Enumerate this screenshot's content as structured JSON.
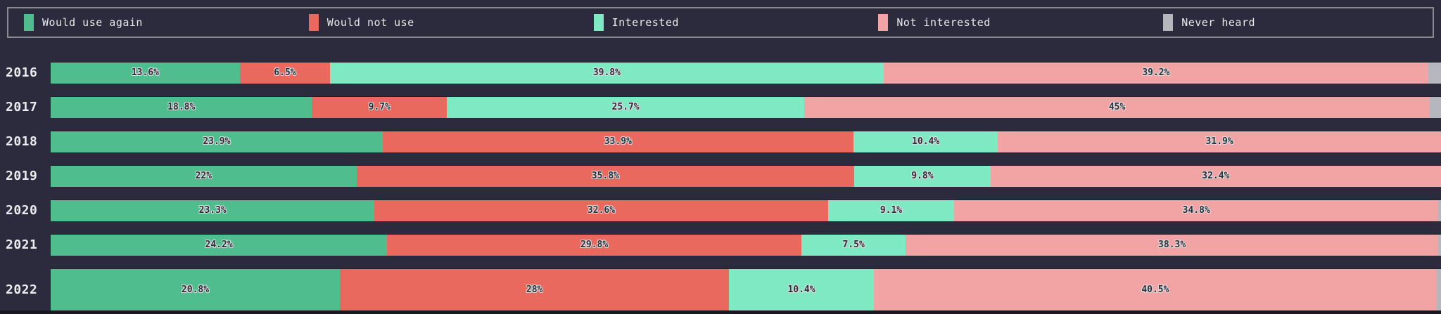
{
  "colors": {
    "background": "#2b2b3d",
    "legend_border": "#8a8a94",
    "would_use_again": "#4fbd8d",
    "would_not_use": "#e9695f",
    "interested": "#7ee9c3",
    "not_interested": "#f2a3a3",
    "never_heard": "#b6b6be"
  },
  "legend": {
    "items": [
      {
        "label": "Would use again",
        "color": "#4fbd8d"
      },
      {
        "label": "Would not use",
        "color": "#e9695f"
      },
      {
        "label": "Interested",
        "color": "#7ee9c3"
      },
      {
        "label": "Not interested",
        "color": "#f2a3a3"
      },
      {
        "label": "Never heard",
        "color": "#b6b6be"
      }
    ]
  },
  "chart_data": {
    "type": "bar",
    "orientation": "horizontal-stacked",
    "title": "",
    "xlabel": "",
    "ylabel": "",
    "xlim": [
      0,
      100
    ],
    "value_suffix": "%",
    "legend_position": "top",
    "categories": [
      "2016",
      "2017",
      "2018",
      "2019",
      "2020",
      "2021",
      "2022"
    ],
    "series": [
      {
        "name": "Would use again",
        "color": "#4fbd8d",
        "values": [
          13.6,
          18.8,
          23.9,
          22,
          23.3,
          24.2,
          20.8
        ]
      },
      {
        "name": "Would not use",
        "color": "#e9695f",
        "values": [
          6.5,
          9.7,
          33.9,
          35.8,
          32.6,
          29.8,
          28
        ]
      },
      {
        "name": "Interested",
        "color": "#7ee9c3",
        "values": [
          39.8,
          25.7,
          10.4,
          9.8,
          9.1,
          7.5,
          10.4
        ]
      },
      {
        "name": "Not interested",
        "color": "#f2a3a3",
        "values": [
          39.2,
          45,
          31.9,
          32.4,
          34.8,
          38.3,
          40.5
        ]
      },
      {
        "name": "Never heard",
        "color": "#b6b6be",
        "values": [
          0.9,
          0.8,
          0,
          0,
          0.2,
          0.2,
          0.3
        ]
      }
    ],
    "displayed_labels": [
      [
        "13.6%",
        "6.5%",
        "39.8%",
        "39.2%",
        ""
      ],
      [
        "18.8%",
        "9.7%",
        "25.7%",
        "45%",
        ""
      ],
      [
        "23.9%",
        "33.9%",
        "10.4%",
        "31.9%",
        ""
      ],
      [
        "22%",
        "35.8%",
        "9.8%",
        "32.4%",
        ""
      ],
      [
        "23.3%",
        "32.6%",
        "9.1%",
        "34.8%",
        ""
      ],
      [
        "24.2%",
        "29.8%",
        "7.5%",
        "38.3%",
        ""
      ],
      [
        "20.8%",
        "28%",
        "10.4%",
        "40.5%",
        ""
      ]
    ]
  }
}
